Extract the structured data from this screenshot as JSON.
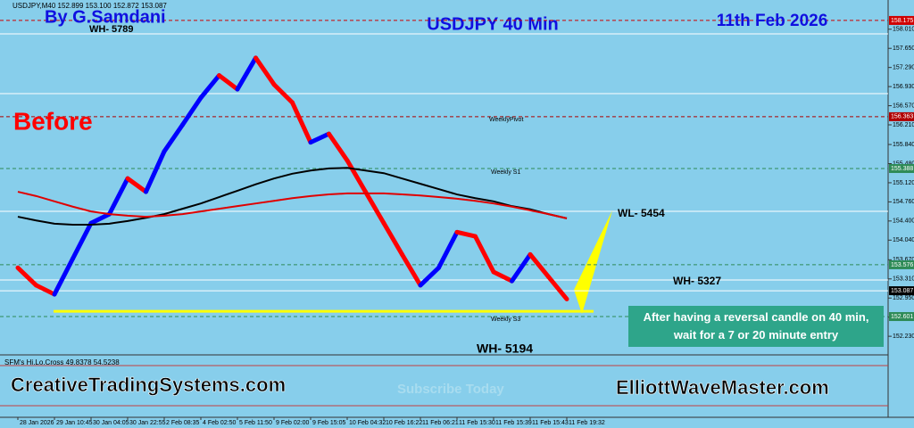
{
  "chart_data": {
    "type": "line",
    "header": "USDJPY,M40 152.899 153.100 152.872 153.087",
    "title": "USDJPY 40 Min",
    "annotations": [
      "By G.Samdani",
      "11th Feb 2026",
      "Before",
      "WH- 5789",
      "WL- 5454",
      "WH- 5327",
      "WH- 5194",
      "WeeklyPivot",
      "Weekly S1",
      "Weekly S3",
      "CreativeTradingSystems.com",
      "ElliottWaveMaster.com",
      "Subscribe Today"
    ],
    "oscillator_label": "SFM's Hi.Lo.Cross 49.8378 54.5238",
    "note": "After having a reversal candle on 40 min, wait for a 7 or 20 minute entry",
    "categories": [
      "28 Jan 2026",
      null,
      "29 Jan 10:45",
      null,
      "30 Jan 04:05",
      null,
      "30 Jan 22:55",
      null,
      "2 Feb 08:35",
      null,
      "4 Feb 02:50",
      null,
      "5 Feb 11:50",
      null,
      "9 Feb 02:00",
      null,
      "9 Feb 15:05",
      null,
      "10 Feb 04:32",
      null,
      "10 Feb 16:22",
      null,
      "11 Feb 06:21",
      null,
      "11 Feb 15:30",
      null,
      "11 Feb 15:39",
      null,
      "11 Feb 15:43",
      null,
      "11 Feb 19:32"
    ],
    "series": [
      {
        "up_color": "#0000ff",
        "down_color": "#ff0000",
        "values": [
          153.52,
          153.19,
          153.02,
          153.69,
          154.36,
          154.53,
          155.2,
          154.95,
          155.71,
          156.21,
          156.72,
          157.14,
          156.88,
          157.47,
          156.97,
          156.63,
          155.88,
          156.04,
          155.54,
          154.95,
          154.36,
          153.77,
          153.19,
          153.52,
          154.19,
          154.11,
          153.44,
          153.27,
          153.77,
          153.35,
          152.93
        ]
      },
      {
        "color": "#000000",
        "values": [
          154.48,
          154.41,
          154.35,
          154.33,
          154.33,
          154.35,
          154.4,
          154.46,
          154.53,
          154.63,
          154.73,
          154.85,
          154.97,
          155.09,
          155.2,
          155.29,
          155.35,
          155.39,
          155.4,
          155.35,
          155.3,
          155.2,
          155.1,
          155.0,
          154.9,
          154.83,
          154.77,
          154.68,
          154.62,
          154.53,
          154.45
        ]
      },
      {
        "color": "#e00000",
        "values": [
          154.95,
          154.87,
          154.77,
          154.67,
          154.58,
          154.53,
          154.5,
          154.48,
          154.5,
          154.53,
          154.58,
          154.63,
          154.68,
          154.73,
          154.78,
          154.83,
          154.87,
          154.9,
          154.92,
          154.92,
          154.92,
          154.9,
          154.88,
          154.85,
          154.82,
          154.78,
          154.73,
          154.67,
          154.6,
          154.53,
          154.45
        ]
      }
    ],
    "levels": [
      {
        "value": 158.175,
        "color": "#d00000"
      },
      {
        "value": 156.363,
        "color": "#b00000"
      },
      {
        "value": 155.388,
        "color": "#2e8b57"
      },
      {
        "value": 153.576,
        "color": "#2e8b57"
      },
      {
        "value": 153.087,
        "color": "#ffffff"
      },
      {
        "value": 152.601,
        "color": "#2e8b57"
      }
    ],
    "support": 152.7,
    "support_color": "#ffff00",
    "ylim": [
      151.93,
      158.56
    ],
    "yticks": [
      {
        "value": 158.01,
        "label": "158.010"
      },
      {
        "value": 157.65,
        "label": "157.650"
      },
      {
        "value": 157.29,
        "label": "157.290"
      },
      {
        "value": 156.93,
        "label": "156.930"
      },
      {
        "value": 156.57,
        "label": "156.570"
      },
      {
        "value": 156.21,
        "label": "156.210"
      },
      {
        "value": 155.84,
        "label": "155.840"
      },
      {
        "value": 155.48,
        "label": "155.480"
      },
      {
        "value": 155.12,
        "label": "155.120"
      },
      {
        "value": 154.76,
        "label": "154.760"
      },
      {
        "value": 154.4,
        "label": "154.400"
      },
      {
        "value": 154.04,
        "label": "154.040"
      },
      {
        "value": 153.67,
        "label": "153.670"
      },
      {
        "value": 153.31,
        "label": "153.310"
      },
      {
        "value": 152.95,
        "label": "152.950"
      },
      {
        "value": 152.59,
        "label": "152.590"
      },
      {
        "value": 152.23,
        "label": "152.230"
      }
    ]
  }
}
